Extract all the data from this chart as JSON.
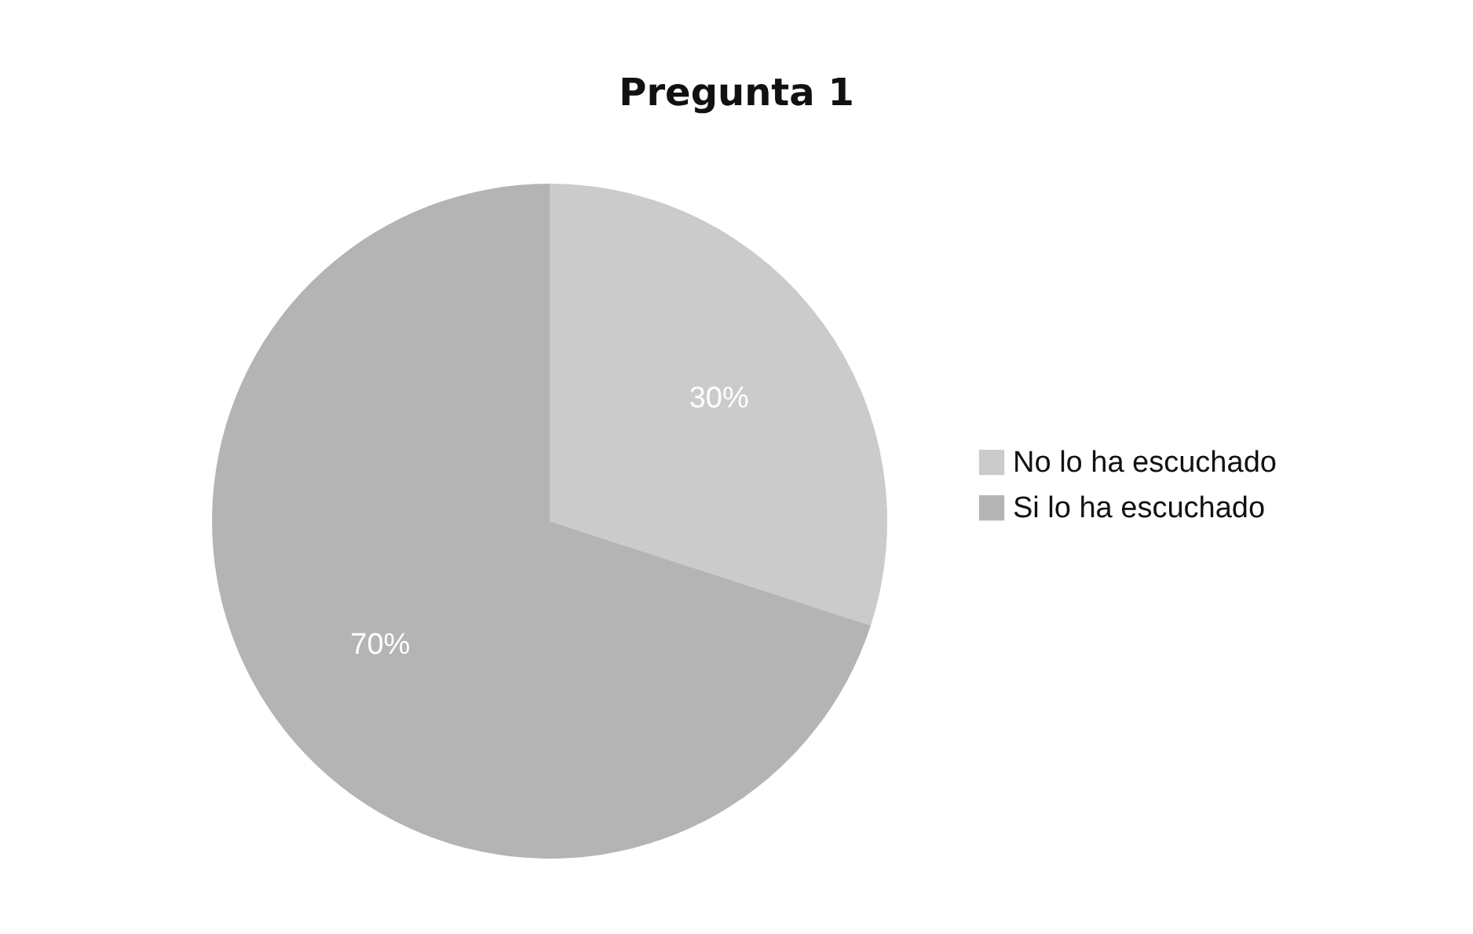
{
  "chart_data": {
    "type": "pie",
    "title": "Pregunta 1",
    "categories": [
      "No lo ha escuchado",
      "Si lo ha escuchado"
    ],
    "values": [
      30,
      70
    ],
    "colors": [
      "#cbcbcb",
      "#b4b4b4"
    ],
    "value_labels": [
      "30%",
      "70%"
    ],
    "legend": "right"
  }
}
